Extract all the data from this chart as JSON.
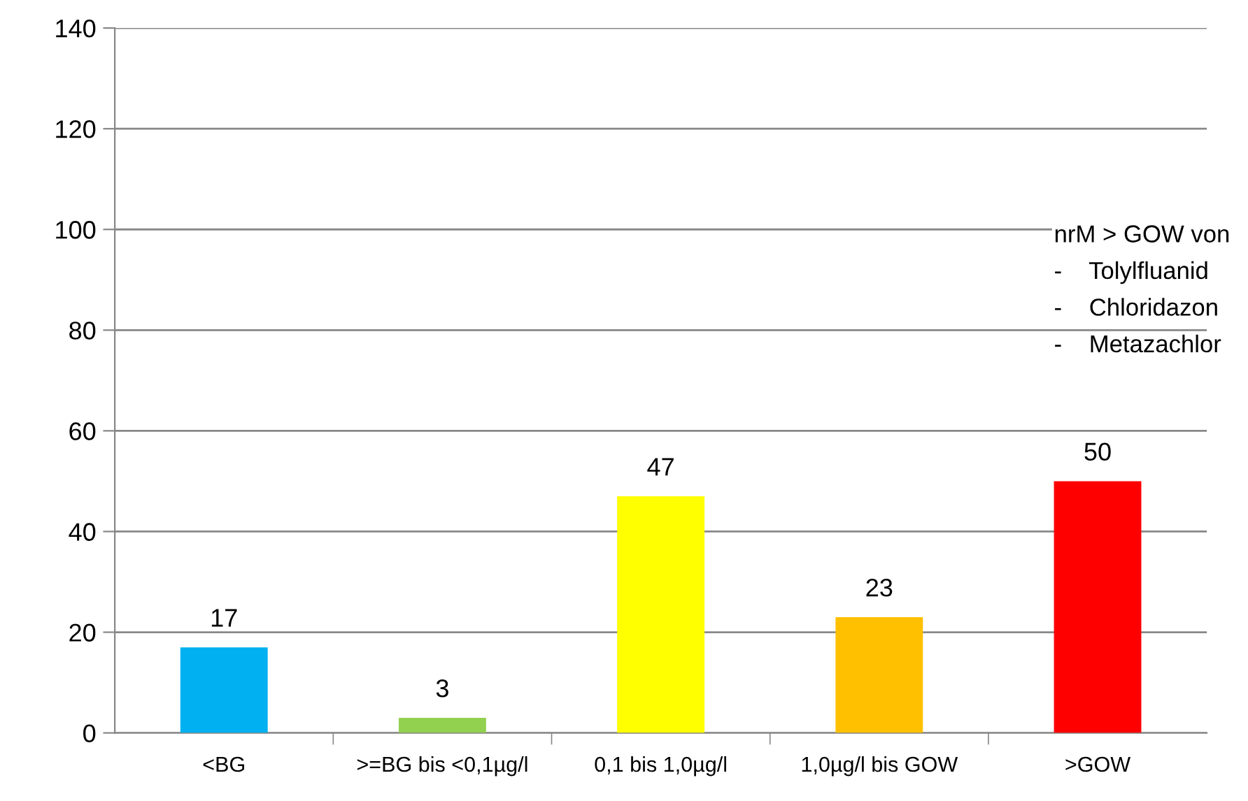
{
  "chart_data": {
    "type": "bar",
    "categories": [
      "<BG",
      ">=BG bis <0,1µg/l",
      "0,1 bis 1,0µg/l",
      "1,0µg/l bis GOW",
      ">GOW"
    ],
    "values": [
      17,
      3,
      47,
      23,
      50
    ],
    "colors": [
      "#00b0f0",
      "#92d050",
      "#ffff00",
      "#ffc000",
      "#ff0000"
    ],
    "ylim": [
      0,
      140
    ],
    "yticks": [
      0,
      20,
      40,
      60,
      80,
      100,
      120,
      140
    ],
    "grid": "y",
    "data_labels": true,
    "annotations": [
      "nrM > GOW von",
      "-    Tolylfluanid",
      "-    Chloridazon",
      "-    Metazachlor"
    ]
  }
}
